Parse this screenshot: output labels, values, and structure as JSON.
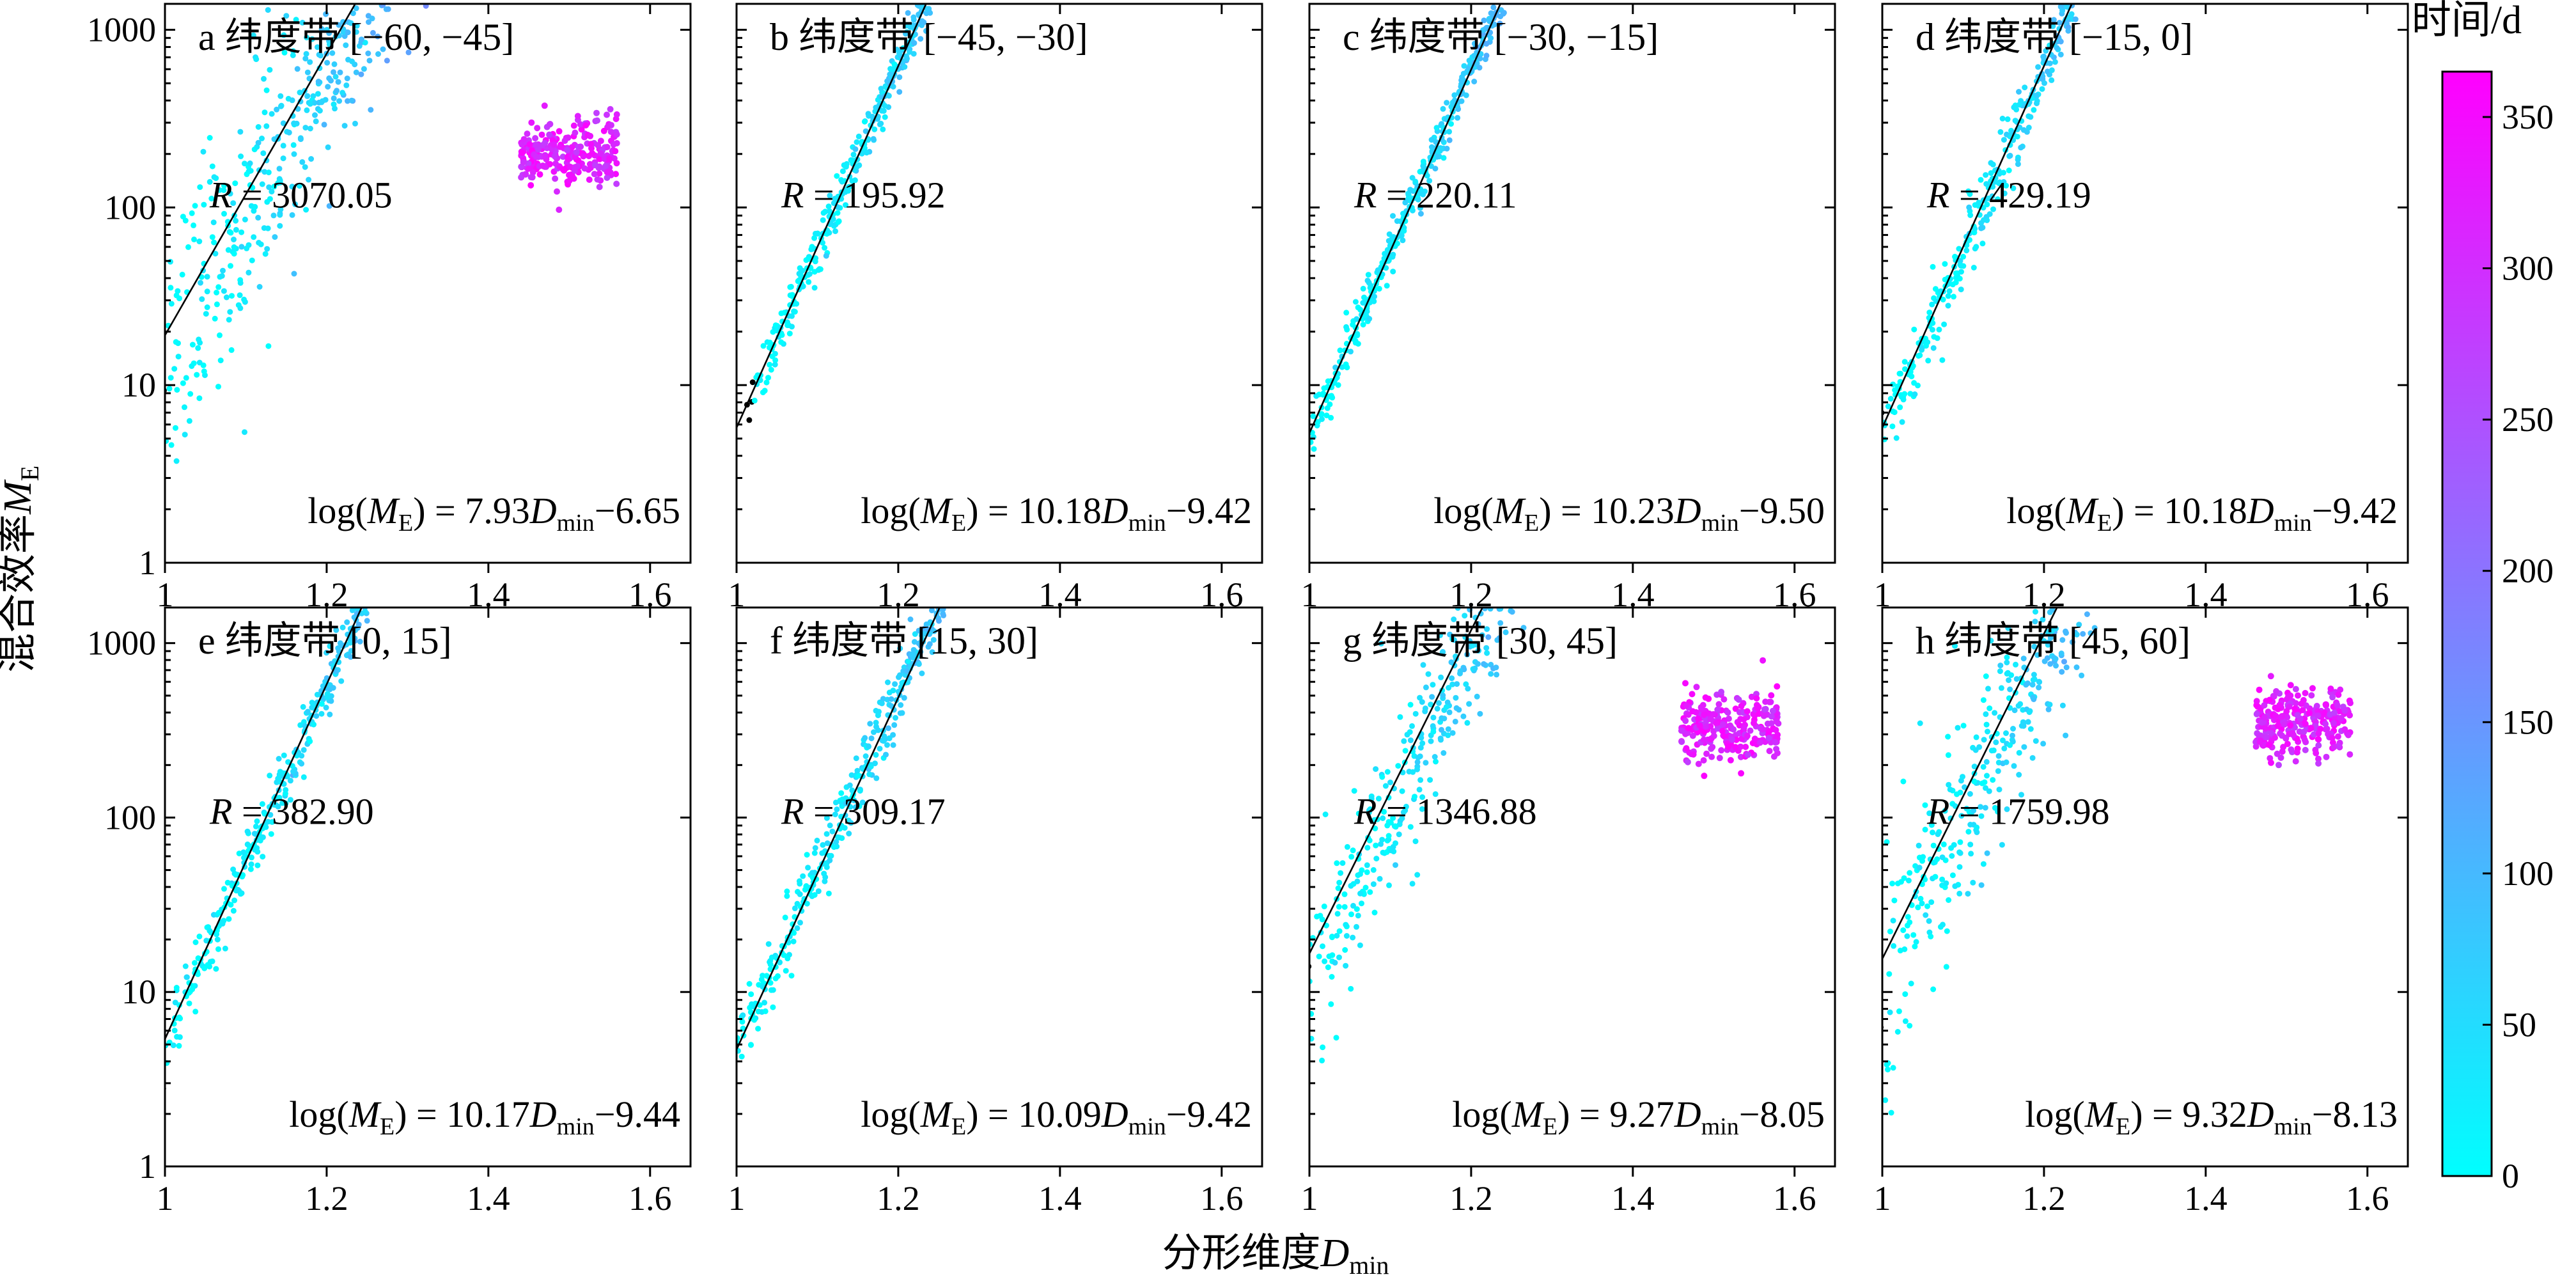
{
  "chart_data": {
    "type": "scatter",
    "shared": {
      "x_label_prefix": "分形维度",
      "x_label_var": "D",
      "x_label_sub": "min",
      "y_label_prefix": "混合效率",
      "y_label_var": "M",
      "y_label_sub": "E",
      "xlim": [
        1,
        1.65
      ],
      "xticks": [
        1,
        1.2,
        1.4,
        1.6
      ],
      "xtick_labels": [
        "1",
        "1.2",
        "1.4",
        "1.6"
      ],
      "ylim_top_row": [
        1,
        1400
      ],
      "ylim_bottom_row": [
        1,
        1600
      ],
      "yscale": "log",
      "yticks": [
        1,
        10,
        100,
        1000
      ],
      "ytick_labels": [
        "1",
        "10",
        "100",
        "1000"
      ],
      "grid": false,
      "colorbar": {
        "label": "时间/d",
        "range": [
          0,
          365
        ],
        "ticks": [
          0,
          50,
          100,
          150,
          200,
          250,
          300,
          350
        ],
        "tick_labels": [
          "0",
          "50",
          "100",
          "150",
          "200",
          "250",
          "300",
          "350"
        ],
        "colors": [
          "#00ffff",
          "#ff00ff"
        ]
      },
      "r_prefix": "R",
      "eq_prefix": "log(",
      "eq_var": "M",
      "eq_sub": "E",
      "eq_mid": ") = ",
      "eq_dvar": "D",
      "eq_dsub": "min",
      "band_label": "纬度带"
    },
    "panels": [
      {
        "letter": "a",
        "band": "[−60, −45]",
        "r_value": "= 3070.05",
        "slope": 7.93,
        "intercept": -6.65,
        "slope_text": "7.93",
        "intercept_text": "−6.65",
        "x_range": [
          1.0,
          1.56
        ],
        "spread": 0.28,
        "bias": -0.14,
        "late_cluster_y": 200
      },
      {
        "letter": "b",
        "band": "[−45, −30]",
        "r_value": "= 195.92",
        "slope": 10.18,
        "intercept": -9.42,
        "slope_text": "10.18",
        "intercept_text": "−9.42",
        "x_range": [
          1.02,
          1.56
        ],
        "spread": 0.06,
        "bias": 0.0,
        "late_cluster_y": 0
      },
      {
        "letter": "c",
        "band": "[−30, −15]",
        "r_value": "= 220.11",
        "slope": 10.23,
        "intercept": -9.5,
        "slope_text": "10.23",
        "intercept_text": "−9.50",
        "x_range": [
          1.0,
          1.53
        ],
        "spread": 0.05,
        "bias": 0.0,
        "late_cluster_y": 0
      },
      {
        "letter": "d",
        "band": "[−15, 0]",
        "r_value": "= 429.19",
        "slope": 10.18,
        "intercept": -9.42,
        "slope_text": "10.18",
        "intercept_text": "−9.42",
        "x_range": [
          1.0,
          1.61
        ],
        "spread": 0.08,
        "bias": -0.03,
        "late_cluster_y": 0
      },
      {
        "letter": "e",
        "band": "[0, 15]",
        "r_value": "= 382.90",
        "slope": 10.17,
        "intercept": -9.44,
        "slope_text": "10.17",
        "intercept_text": "−9.44",
        "x_range": [
          1.0,
          1.64
        ],
        "spread": 0.07,
        "bias": -0.03,
        "late_cluster_y": 0
      },
      {
        "letter": "f",
        "band": "[15, 30]",
        "r_value": "= 309.17",
        "slope": 10.09,
        "intercept": -9.42,
        "slope_text": "10.09",
        "intercept_text": "−9.42",
        "x_range": [
          1.0,
          1.59
        ],
        "spread": 0.08,
        "bias": 0.02,
        "late_cluster_y": 0
      },
      {
        "letter": "g",
        "band": "[30, 45]",
        "r_value": "= 1346.88",
        "slope": 9.27,
        "intercept": -8.05,
        "slope_text": "9.27",
        "intercept_text": "−8.05",
        "x_range": [
          1.0,
          1.58
        ],
        "spread": 0.2,
        "bias": -0.15,
        "late_cluster_y": 330
      },
      {
        "letter": "h",
        "band": "[45, 60]",
        "r_value": "= 1759.98",
        "slope": 9.32,
        "intercept": -8.13,
        "slope_text": "9.32",
        "intercept_text": "−8.13",
        "x_range": [
          1.0,
          1.58
        ],
        "spread": 0.24,
        "bias": -0.15,
        "late_cluster_y": 350
      }
    ]
  }
}
